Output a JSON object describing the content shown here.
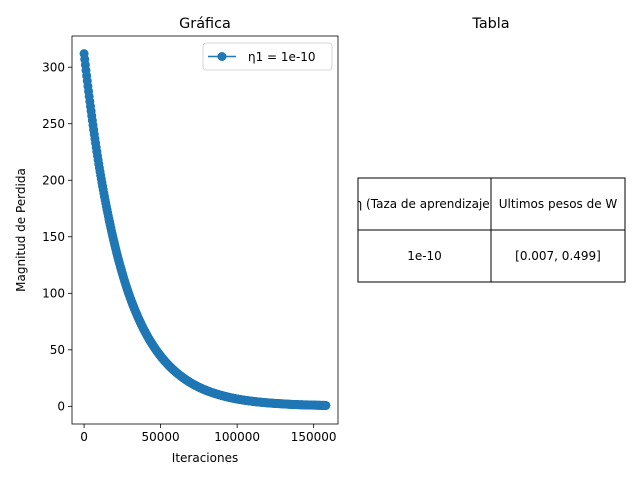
{
  "chart_data": [
    {
      "type": "line",
      "title": "Gráfica",
      "xlabel": "Iteraciones",
      "ylabel": "Magnitud de Perdida",
      "xlim": [
        -7900,
        165900
      ],
      "ylim": [
        -15.6,
        327.6
      ],
      "x_ticks": [
        0,
        50000,
        100000,
        150000
      ],
      "x_tick_labels": [
        "0",
        "50000",
        "100000",
        "150000"
      ],
      "y_ticks": [
        0,
        50,
        100,
        150,
        200,
        250,
        300
      ],
      "y_tick_labels": [
        "0",
        "50",
        "100",
        "150",
        "200",
        "250",
        "300"
      ],
      "grid": false,
      "legend_position": "top-right",
      "series": [
        {
          "name": "η1 = 1e-10",
          "color": "#1f77b4",
          "marker": "circle",
          "x": [
            0,
            5000,
            10000,
            15000,
            20000,
            25000,
            30000,
            35000,
            40000,
            45000,
            50000,
            55000,
            60000,
            65000,
            70000,
            75000,
            80000,
            85000,
            90000,
            95000,
            100000,
            105000,
            110000,
            115000,
            120000,
            125000,
            130000,
            135000,
            140000,
            145000,
            150000,
            155000,
            158000
          ],
          "y": [
            312,
            257,
            211,
            174,
            143,
            117.5,
            96.5,
            79.5,
            65.5,
            54,
            44.5,
            36.7,
            30.3,
            25,
            20.6,
            17,
            14,
            11.6,
            9.6,
            7.9,
            6.5,
            5.4,
            4.5,
            3.7,
            3.1,
            2.6,
            2.2,
            1.8,
            1.5,
            1.3,
            1.1,
            0.9,
            0.8
          ]
        }
      ]
    },
    {
      "type": "table",
      "title": "Tabla",
      "columns": [
        "η (Taza de aprendizaje)",
        "Ultimos pesos de W"
      ],
      "rows": [
        [
          "1e-10",
          "[0.007, 0.499]"
        ]
      ]
    }
  ]
}
